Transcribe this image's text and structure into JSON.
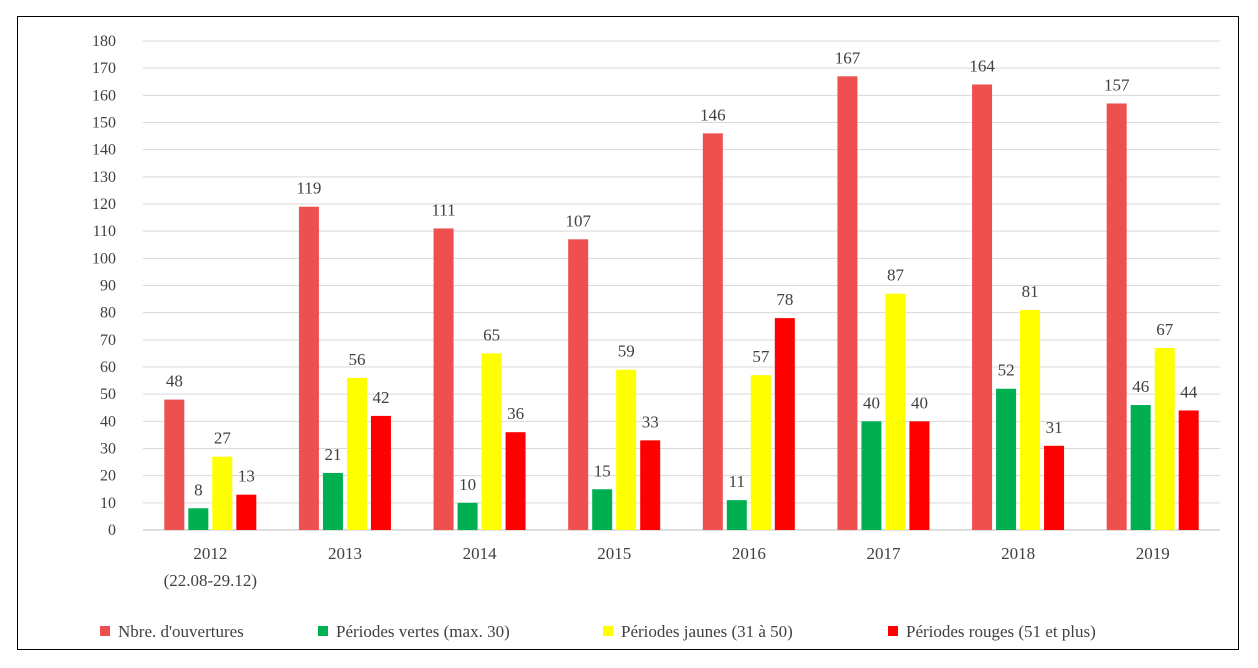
{
  "chart_data": {
    "type": "bar",
    "title": "",
    "xlabel": "",
    "ylabel": "",
    "ylim": [
      0,
      180
    ],
    "ytick_step": 10,
    "grid": true,
    "legend_position": "bottom",
    "categories": [
      [
        "2012",
        "(22.08-29.12)"
      ],
      [
        "2013"
      ],
      [
        "2014"
      ],
      [
        "2015"
      ],
      [
        "2016"
      ],
      [
        "2017"
      ],
      [
        "2018"
      ],
      [
        "2019"
      ]
    ],
    "series": [
      {
        "name": "Nbre. d'ouvertures",
        "color": "#EE5050",
        "values": [
          48,
          119,
          111,
          107,
          146,
          167,
          164,
          157
        ]
      },
      {
        "name": "Périodes vertes (max. 30)",
        "color": "#00B050",
        "values": [
          8,
          21,
          10,
          15,
          11,
          40,
          52,
          46
        ]
      },
      {
        "name": "Périodes jaunes (31 à 50)",
        "color": "#FFFF00",
        "values": [
          27,
          56,
          65,
          59,
          57,
          87,
          81,
          67
        ]
      },
      {
        "name": "Périodes rouges (51 et plus)",
        "color": "#FF0000",
        "values": [
          13,
          42,
          36,
          33,
          78,
          40,
          31,
          44
        ]
      }
    ]
  }
}
